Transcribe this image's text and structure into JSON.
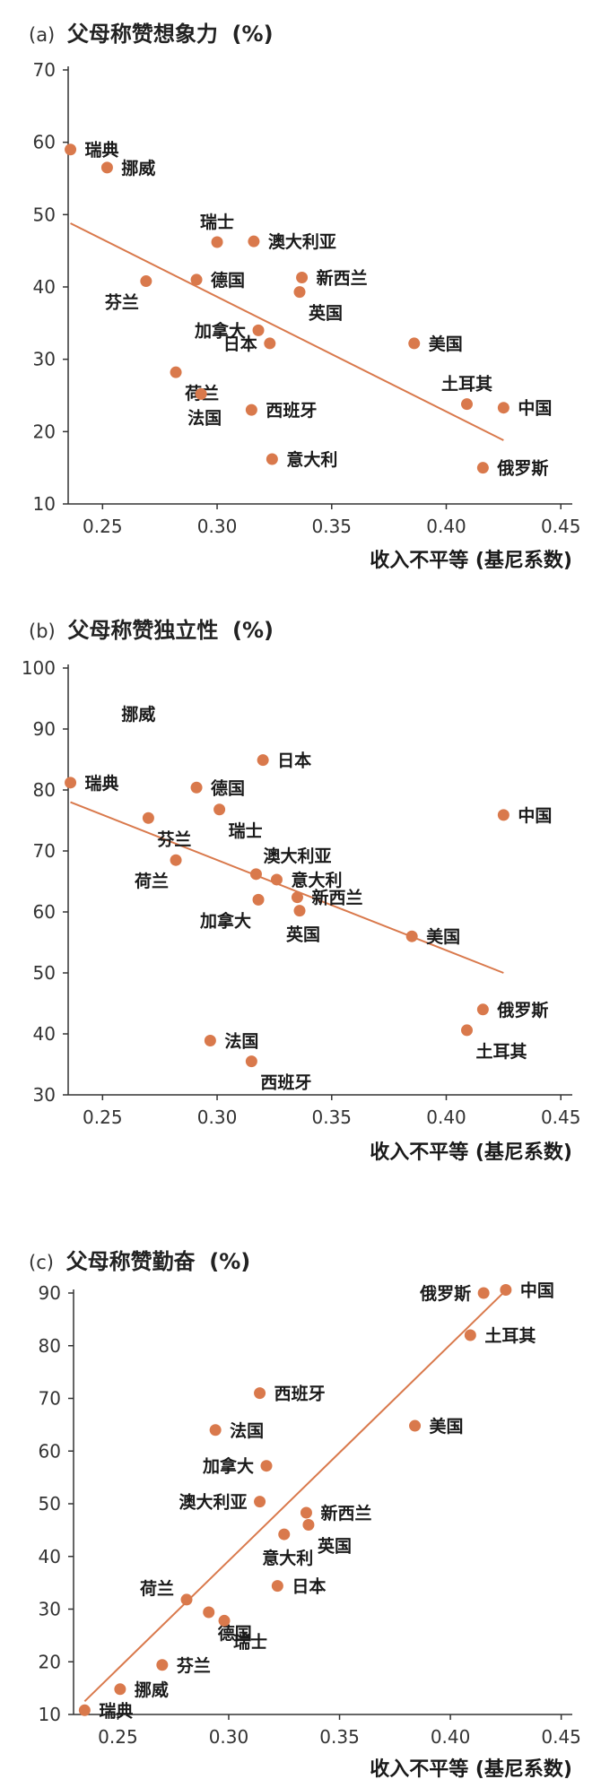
{
  "chart_data": [
    {
      "type": "scatter",
      "panel_tag": "(a)",
      "title": "父母称赞想象力",
      "unit": "(%)",
      "xlabel": "收入不平等 (基尼系数)",
      "xlim": [
        0.235,
        0.455
      ],
      "ylim": [
        10,
        70
      ],
      "xticks": [
        "0.25",
        "0.30",
        "0.35",
        "0.40",
        "0.45"
      ],
      "yticks": [
        "10",
        "20",
        "30",
        "40",
        "50",
        "60",
        "70"
      ],
      "trendline": {
        "x": [
          0.236,
          0.425
        ],
        "y": [
          48.8,
          18.8
        ]
      },
      "points": [
        {
          "name": "瑞典",
          "x": 0.236,
          "y": 59.0,
          "label_pos": "right"
        },
        {
          "name": "挪威",
          "x": 0.252,
          "y": 56.5,
          "label_pos": "right"
        },
        {
          "name": "芬兰",
          "x": 0.269,
          "y": 40.8,
          "label_pos": "below-left"
        },
        {
          "name": "荷兰",
          "x": 0.282,
          "y": 28.2,
          "label_pos": "below-right"
        },
        {
          "name": "德国",
          "x": 0.291,
          "y": 41.0,
          "label_pos": "right"
        },
        {
          "name": "法国",
          "x": 0.293,
          "y": 25.2,
          "label_pos": "below"
        },
        {
          "name": "瑞士",
          "x": 0.3,
          "y": 46.2,
          "label_pos": "above"
        },
        {
          "name": "西班牙",
          "x": 0.315,
          "y": 23.0,
          "label_pos": "right"
        },
        {
          "name": "澳大利亚",
          "x": 0.316,
          "y": 46.3,
          "label_pos": "right"
        },
        {
          "name": "加拿大",
          "x": 0.318,
          "y": 34.0,
          "label_pos": "left"
        },
        {
          "name": "日本",
          "x": 0.323,
          "y": 32.2,
          "label_pos": "left"
        },
        {
          "name": "意大利",
          "x": 0.324,
          "y": 16.2,
          "label_pos": "right"
        },
        {
          "name": "英国",
          "x": 0.336,
          "y": 39.3,
          "label_pos": "below-right"
        },
        {
          "name": "新西兰",
          "x": 0.337,
          "y": 41.3,
          "label_pos": "right"
        },
        {
          "name": "美国",
          "x": 0.386,
          "y": 32.2,
          "label_pos": "right"
        },
        {
          "name": "土耳其",
          "x": 0.409,
          "y": 23.8,
          "label_pos": "above"
        },
        {
          "name": "俄罗斯",
          "x": 0.416,
          "y": 15.0,
          "label_pos": "right"
        },
        {
          "name": "中国",
          "x": 0.425,
          "y": 23.3,
          "label_pos": "right"
        }
      ]
    },
    {
      "type": "scatter",
      "panel_tag": "(b)",
      "title": "父母称赞独立性",
      "unit": "(%)",
      "xlabel": "收入不平等 (基尼系数)",
      "xlim": [
        0.235,
        0.455
      ],
      "ylim": [
        30,
        100
      ],
      "xticks": [
        "0.25",
        "0.30",
        "0.35",
        "0.40",
        "0.45"
      ],
      "yticks": [
        "30",
        "40",
        "50",
        "60",
        "70",
        "80",
        "90",
        "100"
      ],
      "trendline": {
        "x": [
          0.236,
          0.425
        ],
        "y": [
          78.0,
          50.0
        ]
      },
      "points": [
        {
          "name": "挪威",
          "x": 0.252,
          "y": 92.5,
          "label_pos": "right",
          "marker": false
        },
        {
          "name": "瑞典",
          "x": 0.236,
          "y": 81.2,
          "label_pos": "right"
        },
        {
          "name": "芬兰",
          "x": 0.27,
          "y": 75.4,
          "label_pos": "below-right"
        },
        {
          "name": "荷兰",
          "x": 0.282,
          "y": 68.5,
          "label_pos": "below-left"
        },
        {
          "name": "德国",
          "x": 0.291,
          "y": 80.4,
          "label_pos": "right"
        },
        {
          "name": "法国",
          "x": 0.297,
          "y": 38.9,
          "label_pos": "right"
        },
        {
          "name": "瑞士",
          "x": 0.301,
          "y": 76.8,
          "label_pos": "below-right"
        },
        {
          "name": "日本",
          "x": 0.32,
          "y": 84.9,
          "label_pos": "right"
        },
        {
          "name": "西班牙",
          "x": 0.315,
          "y": 35.5,
          "label_pos": "below-right"
        },
        {
          "name": "澳大利亚",
          "x": 0.317,
          "y": 66.2,
          "label_pos": "above-right"
        },
        {
          "name": "加拿大",
          "x": 0.318,
          "y": 62.0,
          "label_pos": "below-left"
        },
        {
          "name": "意大利",
          "x": 0.326,
          "y": 65.3,
          "label_pos": "right"
        },
        {
          "name": "新西兰",
          "x": 0.335,
          "y": 62.4,
          "label_pos": "right"
        },
        {
          "name": "英国",
          "x": 0.336,
          "y": 60.2,
          "label_pos": "below"
        },
        {
          "name": "美国",
          "x": 0.385,
          "y": 56.0,
          "label_pos": "right"
        },
        {
          "name": "土耳其",
          "x": 0.409,
          "y": 40.6,
          "label_pos": "below-right"
        },
        {
          "name": "俄罗斯",
          "x": 0.416,
          "y": 44.0,
          "label_pos": "right"
        },
        {
          "name": "中国",
          "x": 0.425,
          "y": 75.9,
          "label_pos": "right"
        }
      ]
    },
    {
      "type": "scatter",
      "panel_tag": "(c)",
      "title": "父母称赞勤奋",
      "unit": "(%)",
      "xlabel": "收入不平等 (基尼系数)",
      "xlim": [
        0.23,
        0.455
      ],
      "ylim": [
        10,
        90
      ],
      "xticks": [
        "0.25",
        "0.30",
        "0.35",
        "0.40",
        "0.45"
      ],
      "yticks": [
        "10",
        "20",
        "30",
        "40",
        "50",
        "60",
        "70",
        "80",
        "90"
      ],
      "trendline": {
        "x": [
          0.235,
          0.425
        ],
        "y": [
          12.5,
          90.5
        ]
      },
      "points": [
        {
          "name": "瑞典",
          "x": 0.235,
          "y": 10.8,
          "label_pos": "right"
        },
        {
          "name": "挪威",
          "x": 0.251,
          "y": 14.8,
          "label_pos": "right"
        },
        {
          "name": "芬兰",
          "x": 0.27,
          "y": 19.4,
          "label_pos": "right"
        },
        {
          "name": "荷兰",
          "x": 0.281,
          "y": 31.8,
          "label_pos": "above-left"
        },
        {
          "name": "德国",
          "x": 0.291,
          "y": 29.4,
          "label_pos": "below-right"
        },
        {
          "name": "瑞士",
          "x": 0.298,
          "y": 27.8,
          "label_pos": "below-right"
        },
        {
          "name": "法国",
          "x": 0.294,
          "y": 64.0,
          "label_pos": "right"
        },
        {
          "name": "西班牙",
          "x": 0.314,
          "y": 71.0,
          "label_pos": "right"
        },
        {
          "name": "加拿大",
          "x": 0.317,
          "y": 57.2,
          "label_pos": "left"
        },
        {
          "name": "澳大利亚",
          "x": 0.314,
          "y": 50.4,
          "label_pos": "left"
        },
        {
          "name": "日本",
          "x": 0.322,
          "y": 34.4,
          "label_pos": "right"
        },
        {
          "name": "意大利",
          "x": 0.325,
          "y": 44.2,
          "label_pos": "below"
        },
        {
          "name": "新西兰",
          "x": 0.335,
          "y": 48.3,
          "label_pos": "right"
        },
        {
          "name": "英国",
          "x": 0.336,
          "y": 46.0,
          "label_pos": "below-right"
        },
        {
          "name": "美国",
          "x": 0.384,
          "y": 64.8,
          "label_pos": "right"
        },
        {
          "name": "土耳其",
          "x": 0.409,
          "y": 82.0,
          "label_pos": "right"
        },
        {
          "name": "俄罗斯",
          "x": 0.415,
          "y": 90.0,
          "label_pos": "left"
        },
        {
          "name": "中国",
          "x": 0.425,
          "y": 90.6,
          "label_pos": "right"
        }
      ]
    }
  ],
  "colors": {
    "marker": "#d9794c",
    "trendline": "#d9794c",
    "axis": "#333333",
    "text": "#1a1a1a"
  }
}
